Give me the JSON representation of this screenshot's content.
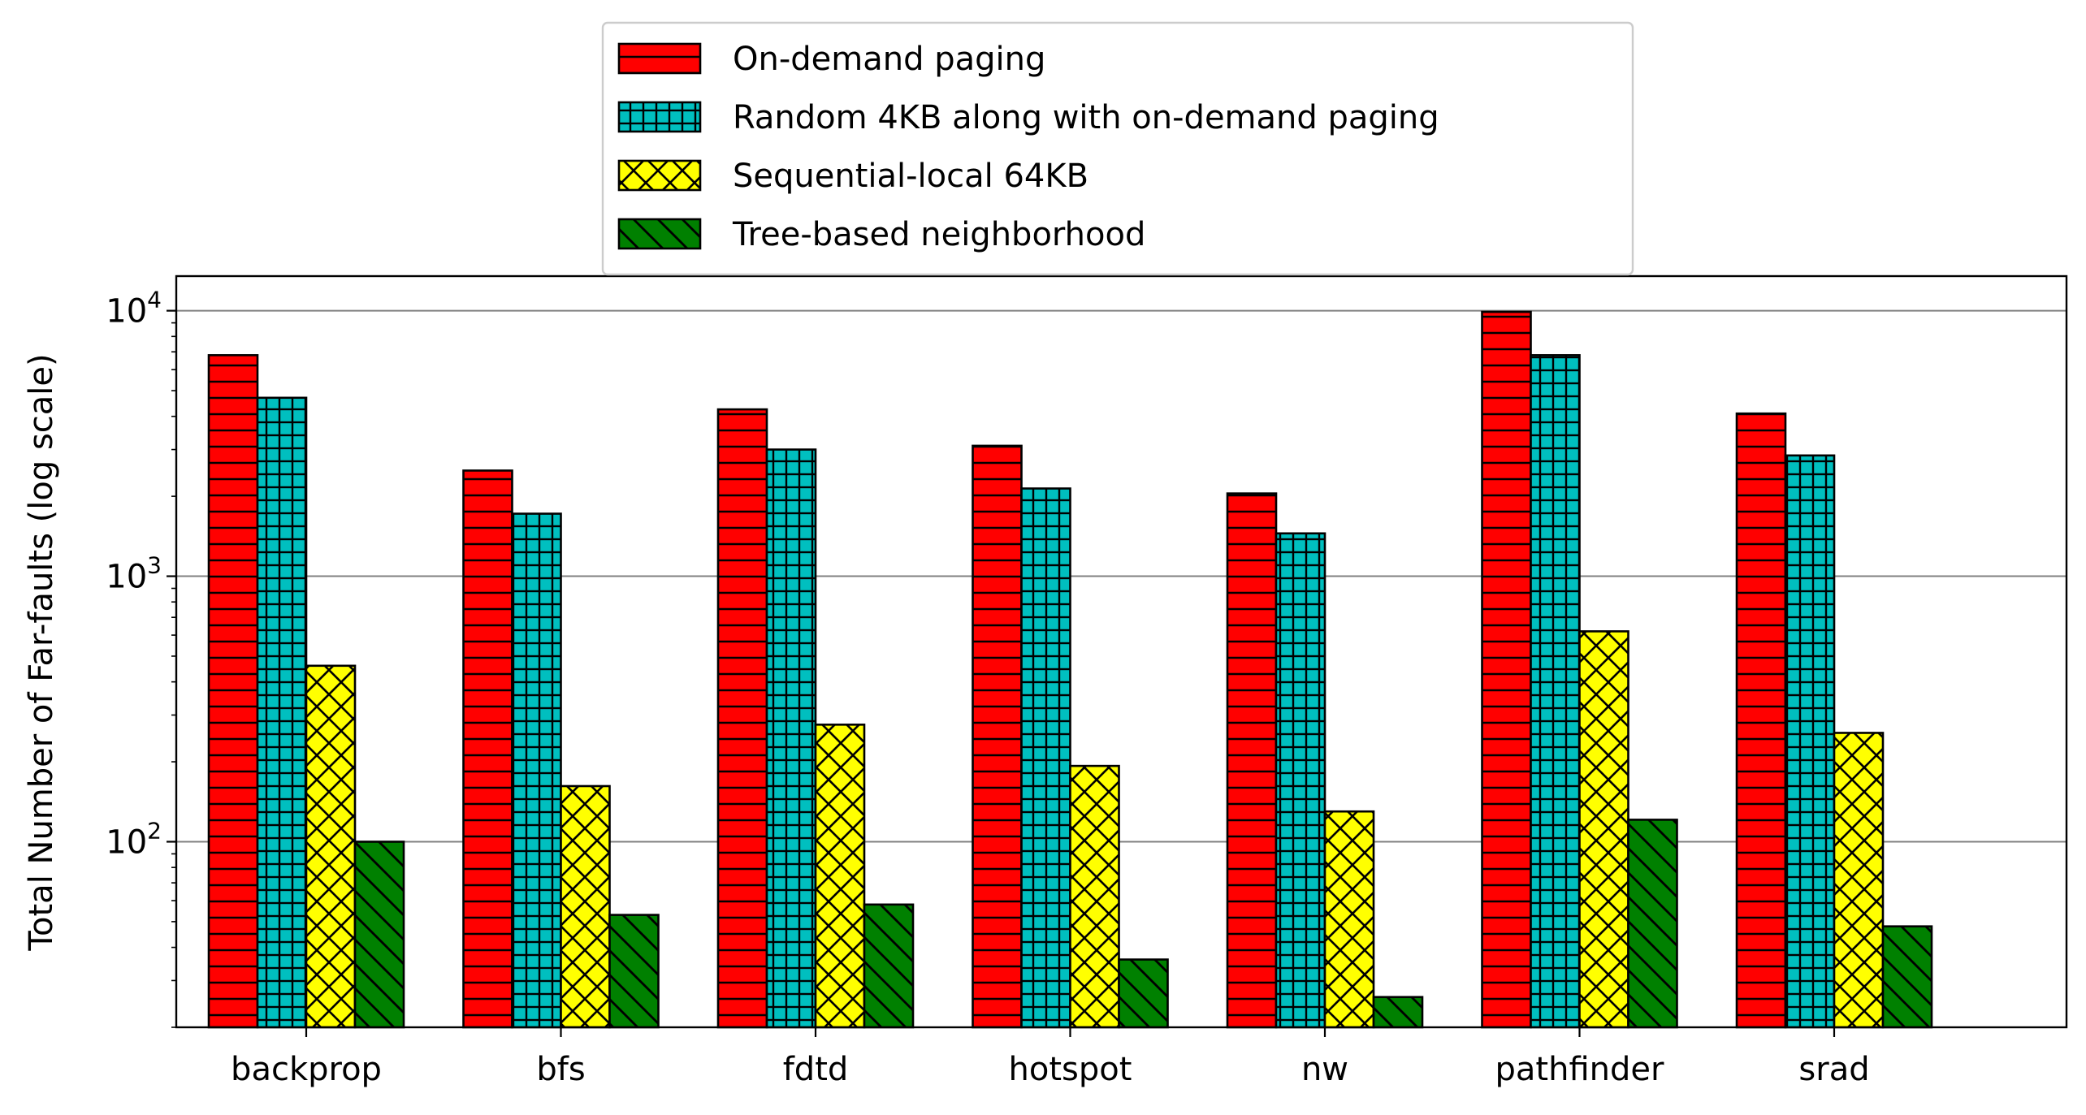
{
  "chart_data": {
    "type": "bar",
    "title": "",
    "xlabel": "",
    "ylabel": "Total Number of Far-faults (log scale)",
    "yscale": "log",
    "ylim": [
      20,
      13500
    ],
    "grid": "horizontal major gridlines",
    "legend_position": "top-center",
    "categories": [
      "backprop",
      "bfs",
      "fdtd",
      "hotspot",
      "nw",
      "pathfinder",
      "srad"
    ],
    "yticks": [
      {
        "value": 100,
        "base": "10",
        "exp": "2"
      },
      {
        "value": 1000,
        "base": "10",
        "exp": "3"
      },
      {
        "value": 10000,
        "base": "10",
        "exp": "4"
      }
    ],
    "series": [
      {
        "name": "On-demand paging",
        "color": "#ff0000",
        "hatch": "horizontal",
        "values": [
          6800,
          2500,
          4250,
          3100,
          2050,
          9900,
          4100
        ]
      },
      {
        "name": "Random 4KB along with on-demand paging",
        "color": "#00bfbf",
        "hatch": "grid",
        "values": [
          4700,
          1720,
          3000,
          2140,
          1450,
          6800,
          2850
        ]
      },
      {
        "name": "Sequential-local 64KB",
        "color": "#ffff00",
        "hatch": "crosshatch",
        "values": [
          460,
          162,
          276,
          193,
          130,
          620,
          257
        ]
      },
      {
        "name": "Tree-based neighborhood",
        "color": "#008000",
        "hatch": "backslash",
        "values": [
          100,
          53,
          58,
          36,
          26,
          121,
          48
        ]
      }
    ]
  }
}
